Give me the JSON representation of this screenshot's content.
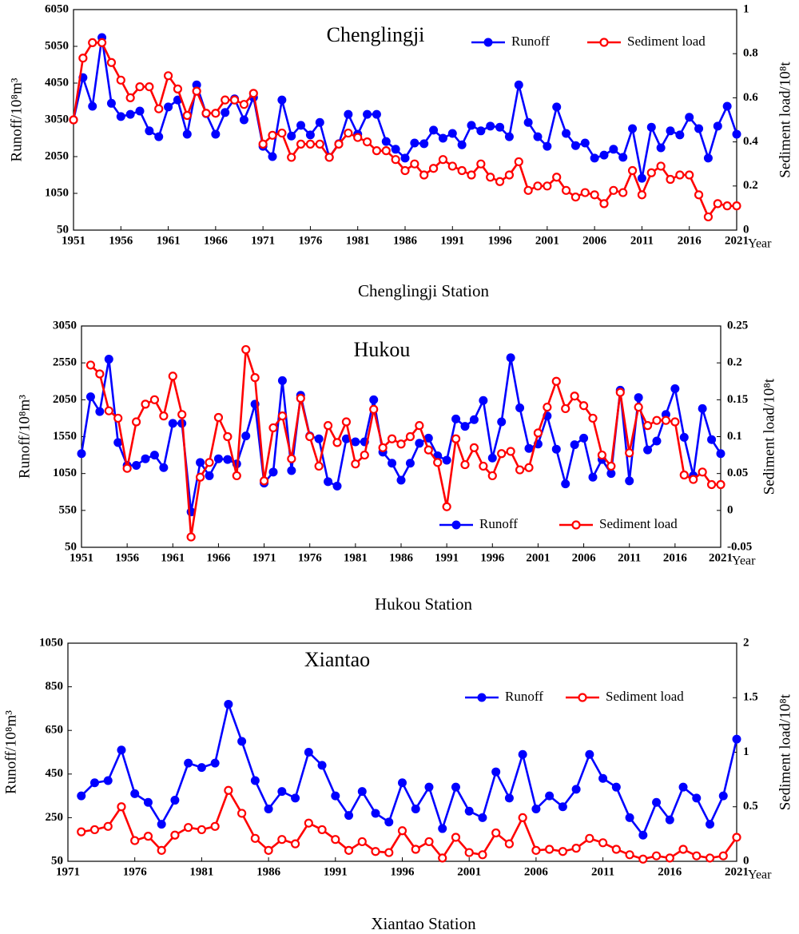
{
  "chart_data": [
    {
      "type": "line",
      "title": "Chenglingji",
      "caption": "Chenglingji Station",
      "ylabel": "Runoff/10⁸m³",
      "y2label": "Sediment load/10⁸t",
      "xlabel": "Year",
      "legend": "upper right",
      "x": [
        1951,
        1952,
        1953,
        1954,
        1955,
        1956,
        1957,
        1958,
        1959,
        1960,
        1961,
        1962,
        1963,
        1964,
        1965,
        1966,
        1967,
        1968,
        1969,
        1970,
        1971,
        1972,
        1973,
        1974,
        1975,
        1976,
        1977,
        1978,
        1979,
        1980,
        1981,
        1982,
        1983,
        1984,
        1985,
        1986,
        1987,
        1988,
        1989,
        1990,
        1991,
        1992,
        1993,
        1994,
        1995,
        1996,
        1997,
        1998,
        1999,
        2000,
        2001,
        2002,
        2003,
        2004,
        2005,
        2006,
        2007,
        2008,
        2009,
        2010,
        2011,
        2012,
        2013,
        2014,
        2015,
        2016,
        2017,
        2018,
        2019,
        2020,
        2021
      ],
      "xlim": [
        1951,
        2021
      ],
      "xticks": [
        1951,
        1956,
        1961,
        1966,
        1971,
        1976,
        1981,
        1986,
        1991,
        1996,
        2001,
        2006,
        2011,
        2016,
        2021
      ],
      "ylim": [
        50,
        6050
      ],
      "yticks": [
        50,
        1050,
        2050,
        3050,
        4050,
        5050,
        6050
      ],
      "y2lim": [
        0,
        1
      ],
      "y2ticks": [
        0,
        0.2,
        0.4,
        0.6,
        0.8,
        1
      ],
      "series": [
        {
          "name": "Runoff",
          "color": "#0000ff",
          "marker": "filled",
          "values": [
            3050,
            4200,
            3420,
            5290,
            3500,
            3140,
            3200,
            3290,
            2750,
            2590,
            3400,
            3590,
            2660,
            4000,
            3220,
            2660,
            3250,
            3620,
            3050,
            3660,
            2330,
            2050,
            3590,
            2610,
            2900,
            2640,
            2980,
            2030,
            2400,
            3200,
            2660,
            3200,
            3200,
            2460,
            2250,
            2010,
            2420,
            2400,
            2770,
            2550,
            2680,
            2370,
            2900,
            2750,
            2880,
            2850,
            2590,
            4000,
            2980,
            2590,
            2330,
            3400,
            2680,
            2350,
            2420,
            2010,
            2090,
            2250,
            2030,
            2810,
            1460,
            2850,
            2290,
            2750,
            2640,
            3120,
            2810,
            2010,
            2880,
            3420,
            2660
          ]
        },
        {
          "name": "Sediment load",
          "color": "#ff0000",
          "marker": "hollow",
          "axis": "y2",
          "values": [
            0.5,
            0.78,
            0.85,
            0.85,
            0.76,
            0.68,
            0.6,
            0.65,
            0.65,
            0.55,
            0.7,
            0.64,
            0.52,
            0.63,
            0.53,
            0.53,
            0.59,
            0.59,
            0.57,
            0.62,
            0.39,
            0.43,
            0.44,
            0.33,
            0.39,
            0.39,
            0.39,
            0.33,
            0.39,
            0.44,
            0.42,
            0.4,
            0.36,
            0.36,
            0.32,
            0.27,
            0.3,
            0.25,
            0.28,
            0.32,
            0.29,
            0.27,
            0.25,
            0.3,
            0.24,
            0.22,
            0.25,
            0.31,
            0.18,
            0.2,
            0.2,
            0.24,
            0.18,
            0.15,
            0.17,
            0.16,
            0.12,
            0.18,
            0.17,
            0.27,
            0.16,
            0.26,
            0.29,
            0.23,
            0.25,
            0.25,
            0.16,
            0.06,
            0.12,
            0.11,
            0.11
          ]
        }
      ]
    },
    {
      "type": "line",
      "title": "Hukou",
      "caption": "Hukou Station",
      "ylabel": "Runoff/10⁸m³",
      "y2label": "Sediment load/10⁸t",
      "xlabel": "Year",
      "legend": "lower right",
      "x": [
        1951,
        1952,
        1953,
        1954,
        1955,
        1956,
        1957,
        1958,
        1959,
        1960,
        1961,
        1962,
        1963,
        1964,
        1965,
        1966,
        1967,
        1968,
        1969,
        1970,
        1971,
        1972,
        1973,
        1974,
        1975,
        1976,
        1977,
        1978,
        1979,
        1980,
        1981,
        1982,
        1983,
        1984,
        1985,
        1986,
        1987,
        1988,
        1989,
        1990,
        1991,
        1992,
        1993,
        1994,
        1995,
        1996,
        1997,
        1998,
        1999,
        2000,
        2001,
        2002,
        2003,
        2004,
        2005,
        2006,
        2007,
        2008,
        2009,
        2010,
        2011,
        2012,
        2013,
        2014,
        2015,
        2016,
        2017,
        2018,
        2019,
        2020,
        2021
      ],
      "xlim": [
        1951,
        2021
      ],
      "xticks": [
        1951,
        1956,
        1961,
        1966,
        1971,
        1976,
        1981,
        1986,
        1991,
        1996,
        2001,
        2006,
        2011,
        2016,
        2021
      ],
      "ylim": [
        50,
        3050
      ],
      "yticks": [
        50,
        550,
        1050,
        1550,
        2050,
        2550,
        3050
      ],
      "y2lim": [
        -0.05,
        0.25
      ],
      "y2ticks": [
        -0.05,
        0,
        0.05,
        0.1,
        0.15,
        0.2,
        0.25
      ],
      "series": [
        {
          "name": "Runoff",
          "color": "#0000ff",
          "marker": "filled",
          "values": [
            1320,
            2090,
            1890,
            2600,
            1470,
            1160,
            1160,
            1250,
            1300,
            1130,
            1730,
            1730,
            530,
            1200,
            1020,
            1250,
            1240,
            1180,
            1560,
            1990,
            920,
            1070,
            2310,
            1090,
            2110,
            1560,
            1520,
            940,
            880,
            1520,
            1480,
            1480,
            2050,
            1340,
            1190,
            960,
            1190,
            1460,
            1530,
            1290,
            1230,
            1790,
            1690,
            1780,
            2040,
            1260,
            1750,
            2620,
            1940,
            1390,
            1450,
            1830,
            1380,
            910,
            1440,
            1530,
            1000,
            1240,
            1050,
            2180,
            950,
            2080,
            1370,
            1490,
            1850,
            2200,
            1540,
            1020,
            1930,
            1510,
            1320
          ]
        },
        {
          "name": "Sediment load",
          "color": "#ff0000",
          "marker": "hollow",
          "axis": "y2",
          "values": [
            null,
            0.197,
            0.185,
            0.135,
            0.125,
            0.057,
            0.12,
            0.144,
            0.15,
            0.128,
            0.182,
            0.13,
            -0.036,
            0.045,
            0.065,
            0.126,
            0.1,
            0.047,
            0.218,
            0.18,
            0.04,
            0.112,
            0.128,
            0.07,
            0.152,
            0.1,
            0.06,
            0.115,
            0.092,
            0.12,
            0.063,
            0.075,
            0.137,
            0.085,
            0.097,
            0.09,
            0.1,
            0.115,
            0.082,
            0.065,
            0.005,
            0.097,
            0.062,
            0.085,
            0.06,
            0.047,
            0.077,
            0.08,
            0.055,
            0.058,
            0.105,
            0.14,
            0.175,
            0.138,
            0.155,
            0.142,
            0.125,
            0.075,
            0.06,
            0.16,
            0.078,
            0.14,
            0.115,
            0.122,
            0.122,
            0.12,
            0.048,
            0.042,
            0.052,
            0.035,
            0.035
          ]
        }
      ]
    },
    {
      "type": "line",
      "title": "Xiantao",
      "caption": "Xiantao Station",
      "ylabel": "Runoff/10⁸m³",
      "y2label": "Sediment load/10⁸t",
      "xlabel": "Year",
      "legend": "upper right",
      "x": [
        1972,
        1973,
        1974,
        1975,
        1976,
        1977,
        1978,
        1979,
        1980,
        1981,
        1982,
        1983,
        1984,
        1985,
        1986,
        1987,
        1988,
        1989,
        1990,
        1991,
        1992,
        1993,
        1994,
        1995,
        1996,
        1997,
        1998,
        1999,
        2000,
        2001,
        2002,
        2003,
        2004,
        2005,
        2006,
        2007,
        2008,
        2009,
        2010,
        2011,
        2012,
        2013,
        2014,
        2015,
        2016,
        2017,
        2018,
        2019,
        2020,
        2021
      ],
      "xlim": [
        1971,
        2021
      ],
      "xticks": [
        1971,
        1976,
        1981,
        1986,
        1991,
        1996,
        2001,
        2006,
        2011,
        2016,
        2021
      ],
      "ylim": [
        50,
        1050
      ],
      "yticks": [
        50,
        250,
        450,
        650,
        850,
        1050
      ],
      "y2lim": [
        0,
        2
      ],
      "y2ticks": [
        0,
        0.5,
        1,
        1.5,
        2
      ],
      "series": [
        {
          "name": "Runoff",
          "color": "#0000ff",
          "marker": "filled",
          "values": [
            350,
            410,
            420,
            560,
            360,
            320,
            220,
            330,
            500,
            480,
            500,
            770,
            600,
            420,
            290,
            370,
            340,
            550,
            490,
            350,
            260,
            370,
            270,
            230,
            410,
            290,
            390,
            200,
            390,
            280,
            250,
            460,
            340,
            540,
            290,
            350,
            300,
            380,
            540,
            430,
            390,
            250,
            170,
            320,
            240,
            390,
            340,
            220,
            350,
            610
          ]
        },
        {
          "name": "Sediment load",
          "color": "#ff0000",
          "marker": "hollow",
          "axis": "y2",
          "values": [
            0.27,
            0.29,
            0.32,
            0.5,
            0.19,
            0.23,
            0.1,
            0.24,
            0.31,
            0.29,
            0.32,
            0.65,
            0.44,
            0.21,
            0.1,
            0.2,
            0.16,
            0.35,
            0.29,
            0.2,
            0.1,
            0.18,
            0.09,
            0.08,
            0.28,
            0.11,
            0.18,
            0.03,
            0.22,
            0.08,
            0.06,
            0.26,
            0.16,
            0.4,
            0.1,
            0.11,
            0.09,
            0.12,
            0.21,
            0.17,
            0.11,
            0.06,
            0.02,
            0.05,
            0.03,
            0.11,
            0.05,
            0.03,
            0.05,
            0.22
          ]
        }
      ]
    }
  ]
}
